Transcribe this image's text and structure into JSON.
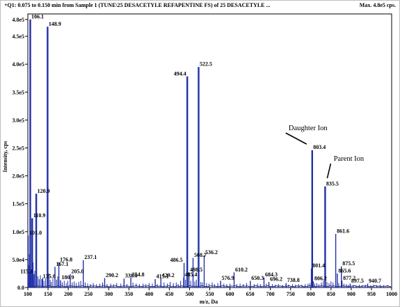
{
  "header": {
    "scan_info": "+Q1: 0.075 to 0.150 min from Sample 1 (TUNE\\25 DESACETYLE REFAPENTINE FS) of 25 DESACETYLE ...",
    "max_label": "Max. 4.8e5 cps."
  },
  "chart_data": {
    "type": "bar",
    "xlabel": "m/z, Da",
    "ylabel": "Intensity, cps",
    "xlim": [
      100,
      1000
    ],
    "ylim": [
      0,
      490000
    ],
    "x_ticks": [
      100,
      150,
      200,
      250,
      300,
      350,
      400,
      450,
      500,
      550,
      600,
      650,
      700,
      750,
      800,
      850,
      900,
      950,
      1000
    ],
    "x_tick_labels": [
      "100",
      "150",
      "200",
      "250",
      "300",
      "350",
      "400",
      "450",
      "500",
      "550",
      "600",
      "650",
      "700",
      "750",
      "800",
      "850",
      "900",
      "950",
      "1000"
    ],
    "y_ticks": [
      0,
      50000,
      100000,
      150000,
      200000,
      250000,
      300000,
      350000,
      400000,
      450000,
      480000
    ],
    "y_tick_labels": [
      "0.0",
      "5.0e4",
      "1.0e5",
      "1.5e5",
      "2.0e5",
      "2.5e5",
      "3.0e5",
      "3.5e5",
      "4.0e5",
      "4.5e5",
      "4.8e5"
    ],
    "series": [
      {
        "peaks": [
          {
            "mz": 106.1,
            "intensity": 480000,
            "label": "106.1"
          },
          {
            "mz": 148.9,
            "intensity": 467000,
            "label": "148.9"
          },
          {
            "mz": 494.4,
            "intensity": 378000,
            "label": "494.4"
          },
          {
            "mz": 522.5,
            "intensity": 395000,
            "label": "522.5"
          },
          {
            "mz": 803.4,
            "intensity": 246000,
            "label": "803.4"
          },
          {
            "mz": 835.5,
            "intensity": 181000,
            "label": "835.5"
          },
          {
            "mz": 861.6,
            "intensity": 96000,
            "label": "861.6"
          },
          {
            "mz": 875.5,
            "intensity": 38000,
            "label": "875.5"
          },
          {
            "mz": 120.9,
            "intensity": 168000,
            "label": "120.9"
          },
          {
            "mz": 110.9,
            "intensity": 124000,
            "label": "110.9"
          },
          {
            "mz": 101.0,
            "intensity": 93000,
            "label": "101.0"
          },
          {
            "mz": 237.1,
            "intensity": 49000,
            "label": "237.1"
          },
          {
            "mz": 176.8,
            "intensity": 45000,
            "label": "176.8"
          },
          {
            "mz": 167.1,
            "intensity": 37000,
            "label": "167.1"
          },
          {
            "mz": 508.7,
            "intensity": 53000,
            "label": "508.7"
          },
          {
            "mz": 536.2,
            "intensity": 58000,
            "label": "536.2"
          },
          {
            "mz": 486.5,
            "intensity": 44000,
            "label": "486.5"
          },
          {
            "mz": 498.5,
            "intensity": 27000,
            "label": "498.5"
          },
          {
            "mz": 610.2,
            "intensity": 27000,
            "label": "610.2"
          },
          {
            "mz": 801.4,
            "intensity": 34000,
            "label": "801.4"
          },
          {
            "mz": 865.6,
            "intensity": 25000,
            "label": "865.6"
          },
          {
            "mz": 806.2,
            "intensity": 11000,
            "label": "806.2"
          },
          {
            "mz": 877.2,
            "intensity": 12000,
            "label": "877.2"
          },
          {
            "mz": 684.3,
            "intensity": 18000,
            "label": "684.3"
          },
          {
            "mz": 650.3,
            "intensity": 12000,
            "label": "650.3"
          },
          {
            "mz": 696.2,
            "intensity": 10000,
            "label": "696.2"
          },
          {
            "mz": 738.8,
            "intensity": 8000,
            "label": "738.8"
          },
          {
            "mz": 576.9,
            "intensity": 12000,
            "label": "576.9"
          },
          {
            "mz": 485.4,
            "intensity": 18000,
            "label": "485.4"
          },
          {
            "mz": 429.2,
            "intensity": 17000,
            "label": "429.2"
          },
          {
            "mz": 415.1,
            "intensity": 15000,
            "label": "415.1"
          },
          {
            "mz": 354.8,
            "intensity": 18000,
            "label": "354.8"
          },
          {
            "mz": 338.0,
            "intensity": 16000,
            "label": "338.0"
          },
          {
            "mz": 290.2,
            "intensity": 17000,
            "label": "290.2"
          },
          {
            "mz": 205.0,
            "intensity": 24000,
            "label": "205.0"
          },
          {
            "mz": 115.3,
            "intensity": 24000,
            "label": "115.3"
          },
          {
            "mz": 135.0,
            "intensity": 15000,
            "label": "135.0"
          },
          {
            "mz": 180.9,
            "intensity": 13000,
            "label": "180.9"
          },
          {
            "mz": 897.5,
            "intensity": 7000,
            "label": "897.5"
          },
          {
            "mz": 940.7,
            "intensity": 7000,
            "label": "940.7"
          }
        ],
        "minor_peaks": [
          [
            103,
            40000
          ],
          [
            104,
            60000
          ],
          [
            108,
            30000
          ],
          [
            113,
            45000
          ],
          [
            117,
            30000
          ],
          [
            125,
            20000
          ],
          [
            128,
            15000
          ],
          [
            131,
            22000
          ],
          [
            137,
            18000
          ],
          [
            140,
            12000
          ],
          [
            144,
            16000
          ],
          [
            152,
            25000
          ],
          [
            155,
            14000
          ],
          [
            158,
            10000
          ],
          [
            162,
            16000
          ],
          [
            171,
            14000
          ],
          [
            174,
            20000
          ],
          [
            185,
            9000
          ],
          [
            190,
            12000
          ],
          [
            195,
            8000
          ],
          [
            199,
            12000
          ],
          [
            210,
            9000
          ],
          [
            215,
            11000
          ],
          [
            220,
            8000
          ],
          [
            226,
            10000
          ],
          [
            231,
            12000
          ],
          [
            242,
            9000
          ],
          [
            248,
            7000
          ],
          [
            255,
            6000
          ],
          [
            262,
            8000
          ],
          [
            270,
            6000
          ],
          [
            278,
            7000
          ],
          [
            285,
            9000
          ],
          [
            296,
            6000
          ],
          [
            305,
            7000
          ],
          [
            312,
            6000
          ],
          [
            320,
            8000
          ],
          [
            330,
            7000
          ],
          [
            345,
            6000
          ],
          [
            360,
            9000
          ],
          [
            368,
            7000
          ],
          [
            376,
            6000
          ],
          [
            385,
            7000
          ],
          [
            392,
            6000
          ],
          [
            400,
            8000
          ],
          [
            408,
            7000
          ],
          [
            420,
            6000
          ],
          [
            437,
            9000
          ],
          [
            445,
            7000
          ],
          [
            452,
            10000
          ],
          [
            460,
            8000
          ],
          [
            467,
            9000
          ],
          [
            472,
            6000
          ],
          [
            478,
            12000
          ],
          [
            490,
            14000
          ],
          [
            503,
            12000
          ],
          [
            513,
            11000
          ],
          [
            517,
            14000
          ],
          [
            528,
            10000
          ],
          [
            532,
            9000
          ],
          [
            542,
            8000
          ],
          [
            548,
            7000
          ],
          [
            556,
            9000
          ],
          [
            562,
            6000
          ],
          [
            570,
            8000
          ],
          [
            585,
            7000
          ],
          [
            592,
            6000
          ],
          [
            600,
            7000
          ],
          [
            617,
            6000
          ],
          [
            625,
            7000
          ],
          [
            633,
            6000
          ],
          [
            641,
            8000
          ],
          [
            660,
            6000
          ],
          [
            668,
            7000
          ],
          [
            676,
            6000
          ],
          [
            690,
            7000
          ],
          [
            705,
            6000
          ],
          [
            712,
            5000
          ],
          [
            720,
            6000
          ],
          [
            730,
            5000
          ],
          [
            745,
            5000
          ],
          [
            755,
            6000
          ],
          [
            762,
            5000
          ],
          [
            770,
            6000
          ],
          [
            778,
            5000
          ],
          [
            786,
            6000
          ],
          [
            793,
            7000
          ],
          [
            798,
            8000
          ],
          [
            810,
            7000
          ],
          [
            815,
            8000
          ],
          [
            820,
            6000
          ],
          [
            826,
            9000
          ],
          [
            831,
            12000
          ],
          [
            840,
            10000
          ],
          [
            845,
            8000
          ],
          [
            850,
            11000
          ],
          [
            855,
            9000
          ],
          [
            869,
            8000
          ],
          [
            882,
            7000
          ],
          [
            888,
            6000
          ],
          [
            893,
            5000
          ],
          [
            905,
            5000
          ],
          [
            912,
            4000
          ],
          [
            920,
            5000
          ],
          [
            927,
            4000
          ],
          [
            935,
            5000
          ],
          [
            948,
            4000
          ],
          [
            955,
            5000
          ],
          [
            963,
            4000
          ],
          [
            972,
            5000
          ],
          [
            980,
            4000
          ],
          [
            990,
            4000
          ]
        ]
      }
    ],
    "annotations": [
      {
        "text": "Daughter Ion",
        "target_mz": 803.4
      },
      {
        "text": "Parent Ion",
        "target_mz": 835.5
      }
    ]
  }
}
